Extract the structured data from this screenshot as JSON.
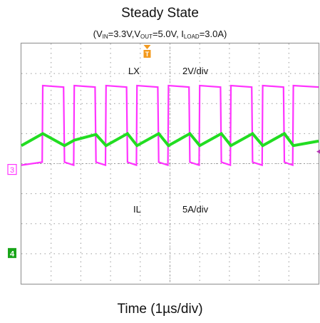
{
  "chart_data": {
    "type": "line",
    "title": "Steady State",
    "subtitle": {
      "open": "(V",
      "vin_sub": "IN",
      "vin_val": "=3.3V,V",
      "vout_sub": "OUT",
      "vout_val": "=5.0V, I",
      "iload_sub": "LOAD",
      "iload_val": "=3.0A)"
    },
    "xlabel": "Time (1µs/div)",
    "grid": true,
    "divisions": {
      "x": 10,
      "y": 8
    },
    "xlim": [
      0,
      10
    ],
    "ylim": [
      -4,
      4
    ],
    "series": [
      {
        "name": "LX",
        "scale": "2V/div",
        "channel_marker": "3",
        "color": "#ff33ff",
        "x": [
          0,
          0.7,
          0.72,
          1.42,
          1.45,
          1.76,
          1.78,
          2.48,
          2.51,
          2.83,
          2.85,
          3.54,
          3.57,
          3.87,
          3.89,
          4.59,
          4.62,
          4.93,
          4.95,
          5.64,
          5.67,
          5.98,
          6.0,
          6.7,
          6.73,
          7.03,
          7.05,
          7.75,
          7.78,
          8.1,
          8.12,
          8.82,
          8.85,
          9.13,
          9.15,
          10
        ],
        "y": [
          -0.05,
          0.05,
          2.6,
          2.55,
          0.05,
          -0.05,
          2.6,
          2.55,
          0.05,
          -0.05,
          2.6,
          2.55,
          0.05,
          -0.05,
          2.6,
          2.55,
          0.05,
          -0.05,
          2.6,
          2.55,
          0.05,
          -0.05,
          2.6,
          2.55,
          0.05,
          -0.05,
          2.6,
          2.55,
          0.05,
          -0.05,
          2.6,
          2.55,
          0.05,
          -0.05,
          2.6,
          2.55
        ]
      },
      {
        "name": "IL",
        "scale": "5A/div",
        "channel_marker": "4",
        "color": "#22dd22",
        "x": [
          0,
          0.72,
          1.45,
          1.78,
          2.51,
          2.85,
          3.57,
          3.89,
          4.62,
          4.95,
          5.67,
          6.0,
          6.73,
          7.05,
          7.78,
          8.12,
          8.85,
          9.15,
          10
        ],
        "y": [
          0.6,
          1.0,
          0.6,
          0.78,
          0.97,
          0.6,
          1.0,
          0.6,
          1.0,
          0.6,
          1.0,
          0.6,
          1.0,
          0.6,
          1.0,
          0.6,
          1.0,
          0.6,
          0.75
        ]
      }
    ],
    "trigger_marker": "T"
  }
}
